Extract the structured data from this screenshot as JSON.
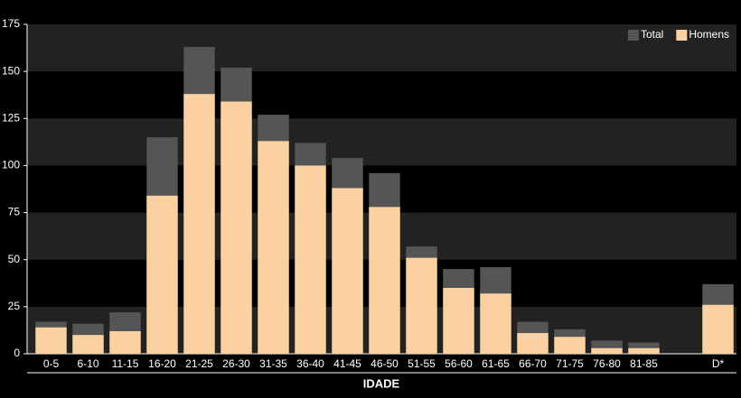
{
  "chart_data": {
    "type": "bar",
    "x_label": "IDADE",
    "categories": [
      "0-5",
      "6-10",
      "11-15",
      "16-20",
      "21-25",
      "26-30",
      "31-35",
      "36-40",
      "41-45",
      "46-50",
      "51-55",
      "56-60",
      "61-65",
      "66-70",
      "71-75",
      "76-80",
      "81-85",
      null,
      "D*"
    ],
    "series": [
      {
        "name": "Total",
        "color": "#555555",
        "values": [
          17,
          16,
          22,
          115,
          163,
          152,
          127,
          112,
          104,
          96,
          57,
          45,
          46,
          17,
          13,
          7,
          6,
          null,
          37
        ]
      },
      {
        "name": "Homens",
        "color": "#fcd1a1",
        "values": [
          14,
          10,
          12,
          84,
          138,
          134,
          113,
          100,
          88,
          78,
          51,
          35,
          32,
          11,
          9,
          3,
          3,
          null,
          26
        ]
      }
    ],
    "ylim": [
      0,
      175
    ],
    "yticks": [
      0,
      25,
      50,
      75,
      100,
      125,
      150,
      175
    ],
    "grid": "bands",
    "legend": "top-right"
  }
}
